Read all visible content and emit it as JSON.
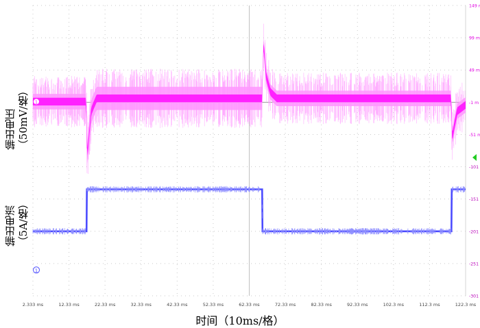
{
  "chart_data": {
    "type": "line",
    "title": "",
    "xlabel": "时间（10ms/格）",
    "ylabels": {
      "voltage": [
        "输出电压",
        "（50mV/格）"
      ],
      "current": [
        "输出电流",
        "（5A/格）"
      ]
    },
    "x_unit": "ms",
    "xlim": [
      2.333,
      122.333
    ],
    "x_ticks": [
      "2.333 ms",
      "12.33 ms",
      "22.33 ms",
      "32.33 ms",
      "42.33 ms",
      "52.33 ms",
      "62.33 ms",
      "72.33 ms",
      "82.33 ms",
      "92.33 ms",
      "102.3 ms",
      "112.3 ms",
      "122.3 ms"
    ],
    "right_axis_ticks": [
      "149 m",
      "99 m",
      "49 m",
      "-1 m",
      "-51 m",
      "-101 m",
      "-151 m",
      "-201 m",
      "-251 m",
      "-301 m"
    ],
    "right_axis_range": [
      -301,
      149
    ],
    "grid": true,
    "channel_markers": [
      "1",
      "1"
    ],
    "series": [
      {
        "channel": "voltage",
        "color": "#ff1aff",
        "envelope_color": "#ff99ff",
        "points": [
          {
            "t": 2.333,
            "v": 0
          },
          {
            "t": 17.1,
            "v": 0
          },
          {
            "t": 17.4,
            "v": -85
          },
          {
            "t": 18.5,
            "v": -15
          },
          {
            "t": 20,
            "v": 5
          },
          {
            "t": 62.3,
            "v": 5
          },
          {
            "t": 65.9,
            "v": 5
          },
          {
            "t": 66.3,
            "v": 90
          },
          {
            "t": 67,
            "v": 40
          },
          {
            "t": 68.2,
            "v": 15
          },
          {
            "t": 70,
            "v": 5
          },
          {
            "t": 118.3,
            "v": 5
          },
          {
            "t": 118.6,
            "v": -55
          },
          {
            "t": 120,
            "v": -15
          },
          {
            "t": 122.333,
            "v": -5
          }
        ]
      },
      {
        "channel": "current",
        "color": "#4b4bff",
        "points": [
          {
            "t": 2.333,
            "v": -201
          },
          {
            "t": 17.2,
            "v": -201
          },
          {
            "t": 17.3,
            "v": -136
          },
          {
            "t": 65.9,
            "v": -136
          },
          {
            "t": 66.0,
            "v": -201
          },
          {
            "t": 118.4,
            "v": -201
          },
          {
            "t": 118.5,
            "v": -136
          },
          {
            "t": 122.333,
            "v": -136
          }
        ]
      }
    ]
  }
}
